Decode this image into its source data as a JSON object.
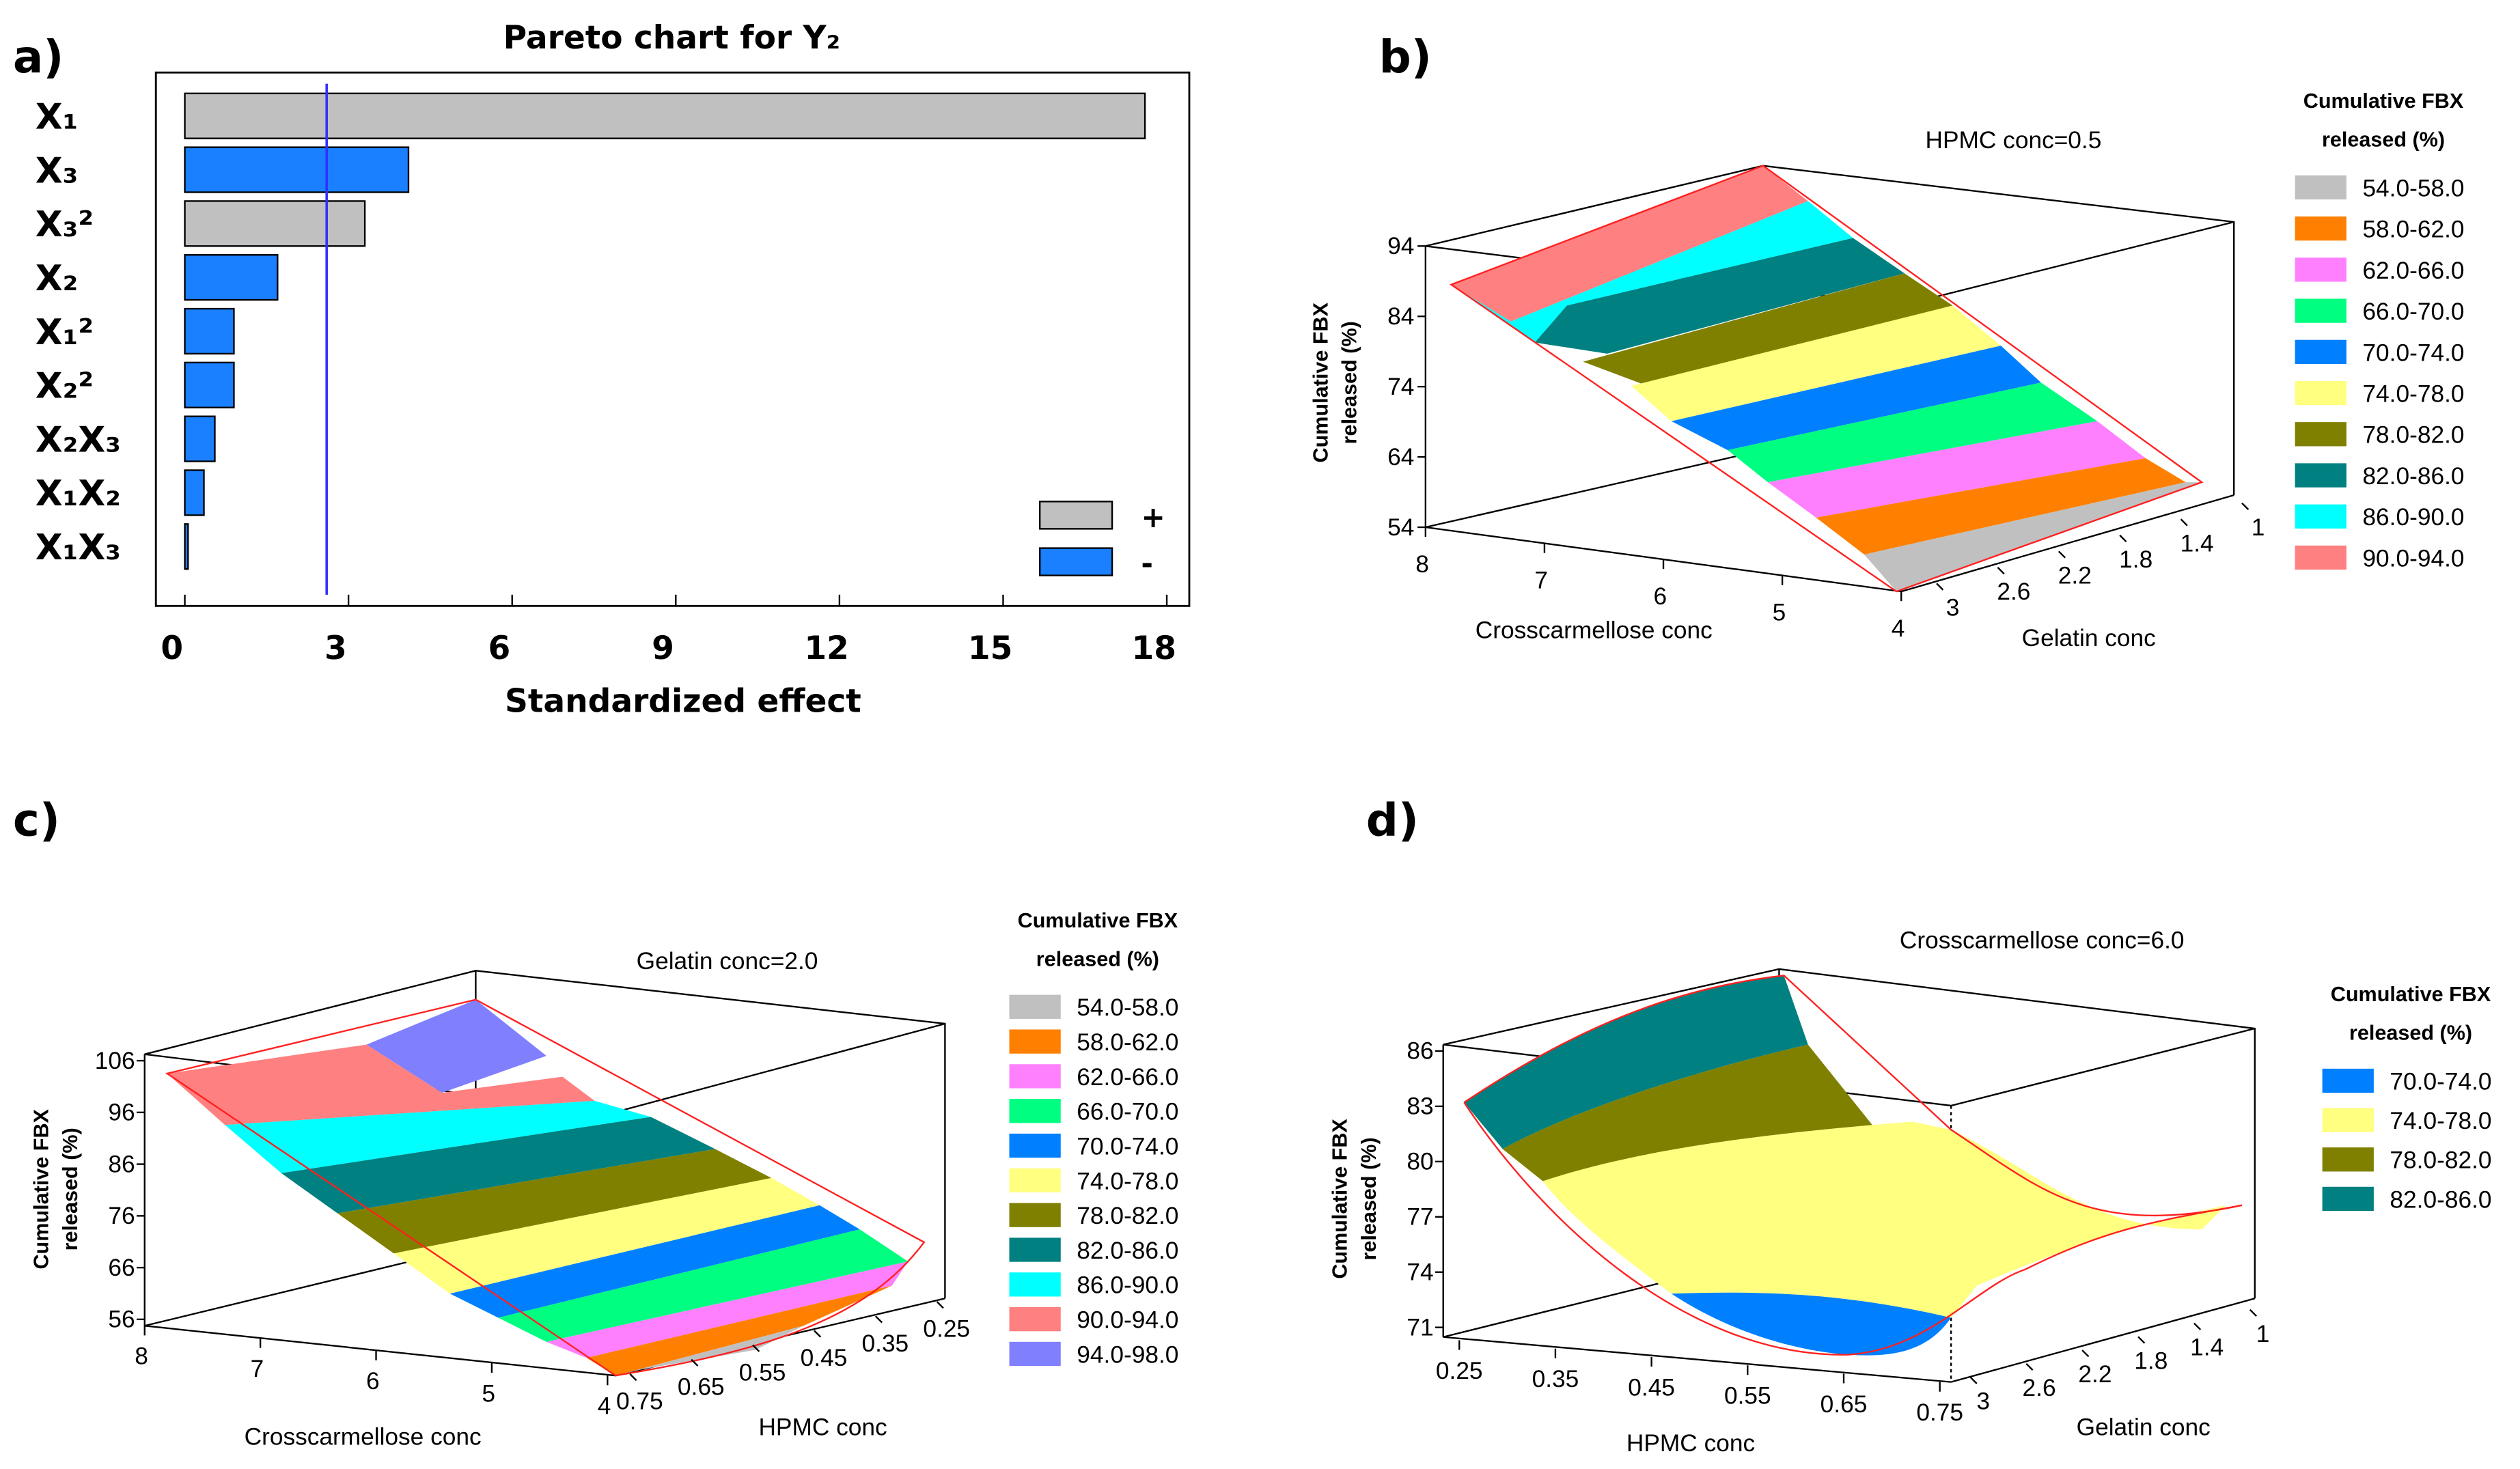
{
  "colors": {
    "band_54_58": "#c0c0c0",
    "band_58_62": "#ff8000",
    "band_62_66": "#ff80ff",
    "band_66_70": "#00ff80",
    "band_70_74": "#0080ff",
    "band_74_78": "#ffff80",
    "band_78_82": "#808000",
    "band_82_86": "#008080",
    "band_86_90": "#00ffff",
    "band_90_94": "#ff8080",
    "band_94_98": "#8080ff",
    "pareto_pos": "#c0c0c0",
    "pareto_neg": "#1a80ff",
    "reference_line": "#3030ff",
    "surface_edge": "#ff2020"
  },
  "chart_data": [
    {
      "panel": "a)",
      "type": "bar",
      "orientation": "horizontal",
      "title": "Pareto chart for Y₂",
      "xlabel": "Standardized effect",
      "xlim": [
        0,
        18
      ],
      "xticks": [
        "0",
        "3",
        "6",
        "9",
        "12",
        "15",
        "18"
      ],
      "reference_line": 2.6,
      "categories": [
        "X₁",
        "X₃",
        "X₃²",
        "X₂",
        "X₁²",
        "X₂²",
        "X₂X₃",
        "X₁X₂",
        "X₁X₃"
      ],
      "values": [
        17.6,
        4.1,
        3.3,
        1.7,
        0.9,
        0.9,
        0.55,
        0.35,
        0.05
      ],
      "signs": [
        "+",
        "-",
        "+",
        "-",
        "-",
        "-",
        "-",
        "-",
        "-"
      ],
      "legend": [
        {
          "label": "+",
          "color": "#c0c0c0"
        },
        {
          "label": "-",
          "color": "#1a80ff"
        }
      ]
    },
    {
      "panel": "b)",
      "type": "surface3d",
      "annotation": "HPMC conc=0.5",
      "zlabel": "Cumulative FBX released (%)",
      "zticks": [
        "54",
        "64",
        "74",
        "84",
        "94"
      ],
      "xlabel": "Crosscarmellose conc",
      "xticks": [
        "8",
        "7",
        "6",
        "5",
        "4"
      ],
      "ylabel": "Gelatin conc",
      "yticks": [
        "3",
        "2.6",
        "2.2",
        "1.8",
        "1.4",
        "1"
      ],
      "legend_title": "Cumulative FBX released (%)",
      "legend": [
        "54.0-58.0",
        "58.0-62.0",
        "62.0-66.0",
        "66.0-70.0",
        "70.0-74.0",
        "74.0-78.0",
        "78.0-82.0",
        "82.0-86.0",
        "86.0-90.0",
        "90.0-94.0"
      ]
    },
    {
      "panel": "c)",
      "type": "surface3d",
      "annotation": "Gelatin conc=2.0",
      "zlabel": "Cumulative FBX released (%)",
      "zticks": [
        "56",
        "66",
        "76",
        "86",
        "96",
        "106"
      ],
      "xlabel": "Crosscarmellose conc",
      "xticks": [
        "8",
        "7",
        "6",
        "5",
        "4"
      ],
      "ylabel": "HPMC conc",
      "yticks": [
        "0.75",
        "0.65",
        "0.55",
        "0.45",
        "0.35",
        "0.25"
      ],
      "legend_title": "Cumulative FBX released (%)",
      "legend": [
        "54.0-58.0",
        "58.0-62.0",
        "62.0-66.0",
        "66.0-70.0",
        "70.0-74.0",
        "74.0-78.0",
        "78.0-82.0",
        "82.0-86.0",
        "86.0-90.0",
        "90.0-94.0",
        "94.0-98.0"
      ]
    },
    {
      "panel": "d)",
      "type": "surface3d",
      "annotation": "Crosscarmellose conc=6.0",
      "zlabel": "Cumulative FBX released (%)",
      "zticks": [
        "71",
        "74",
        "77",
        "80",
        "83",
        "86"
      ],
      "xlabel": "HPMC conc",
      "xticks": [
        "0.25",
        "0.35",
        "0.45",
        "0.55",
        "0.65",
        "0.75"
      ],
      "ylabel": "Gelatin conc",
      "yticks": [
        "3",
        "2.6",
        "2.2",
        "1.8",
        "1.4",
        "1"
      ],
      "legend_title": "Cumulative FBX released (%)",
      "legend": [
        "70.0-74.0",
        "74.0-78.0",
        "78.0-82.0",
        "82.0-86.0"
      ]
    }
  ]
}
